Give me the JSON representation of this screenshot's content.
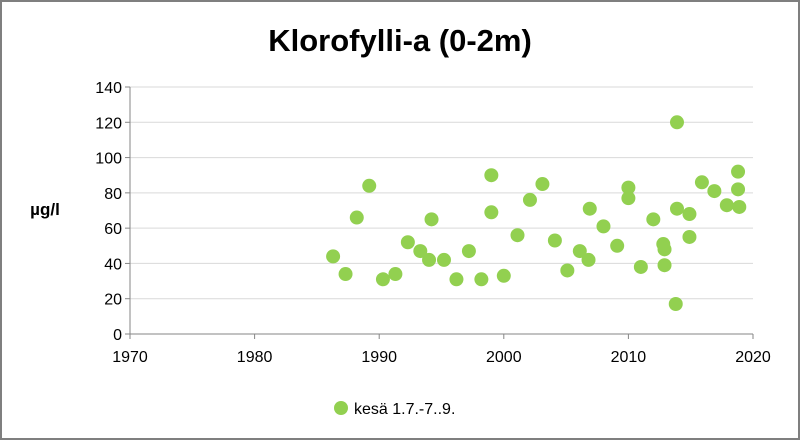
{
  "chart_data": {
    "type": "scatter",
    "title": "Klorofylli-a (0-2m)",
    "xlabel": "",
    "ylabel": "µg/l",
    "xlim": [
      1970,
      2020
    ],
    "ylim": [
      0,
      140
    ],
    "xticks": [
      1970,
      1980,
      1990,
      2000,
      2010,
      2020
    ],
    "yticks": [
      0,
      20,
      40,
      60,
      80,
      100,
      120,
      140
    ],
    "grid": "horizontal",
    "legend_position": "bottom",
    "color": "#92d050",
    "series": [
      {
        "name": "kesä 1.7.-7..9.",
        "points": [
          [
            1986.3,
            44
          ],
          [
            1987.3,
            34
          ],
          [
            1988.2,
            66
          ],
          [
            1989.2,
            84
          ],
          [
            1990.3,
            31
          ],
          [
            1991.3,
            34
          ],
          [
            1992.3,
            52
          ],
          [
            1993.3,
            47
          ],
          [
            1994.0,
            42
          ],
          [
            1994.2,
            65
          ],
          [
            1995.2,
            42
          ],
          [
            1996.2,
            31
          ],
          [
            1997.2,
            47
          ],
          [
            1998.2,
            31
          ],
          [
            1999.0,
            90
          ],
          [
            1999.0,
            69
          ],
          [
            2000.0,
            33
          ],
          [
            2001.1,
            56
          ],
          [
            2002.1,
            76
          ],
          [
            2003.1,
            85
          ],
          [
            2004.1,
            53
          ],
          [
            2005.1,
            36
          ],
          [
            2006.1,
            47
          ],
          [
            2006.8,
            42
          ],
          [
            2006.9,
            71
          ],
          [
            2008.0,
            61
          ],
          [
            2009.1,
            50
          ],
          [
            2010.0,
            83
          ],
          [
            2010.0,
            77
          ],
          [
            2011.0,
            38
          ],
          [
            2012.0,
            65
          ],
          [
            2012.8,
            51
          ],
          [
            2012.9,
            48
          ],
          [
            2012.9,
            39
          ],
          [
            2013.8,
            17
          ],
          [
            2013.9,
            71
          ],
          [
            2013.9,
            120
          ],
          [
            2014.9,
            68
          ],
          [
            2014.9,
            55
          ],
          [
            2015.9,
            86
          ],
          [
            2016.9,
            81
          ],
          [
            2017.9,
            73
          ],
          [
            2018.8,
            92
          ],
          [
            2018.8,
            82
          ],
          [
            2018.9,
            72
          ]
        ]
      }
    ]
  }
}
